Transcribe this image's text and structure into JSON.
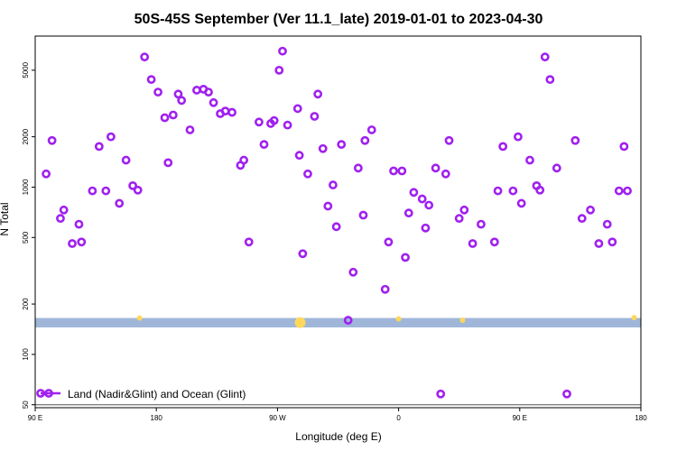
{
  "colors": {
    "series": "#a020f0",
    "band": "#9fb6d9",
    "band_marks": "#ffd75a",
    "axis": "#000000",
    "hline": "#555555"
  },
  "chart_data": {
    "type": "scatter",
    "title": "50S-45S September (Ver 11.1_late)   2019-01-01 to 2023-04-30",
    "xlabel": "Longitude (deg E)",
    "ylabel": "N Total",
    "y_scale": "log",
    "xlim": [
      90,
      450
    ],
    "ylim": [
      48,
      8000
    ],
    "x_ticks": [
      {
        "value": 90,
        "label": "90 E"
      },
      {
        "value": 162,
        "label": "180"
      },
      {
        "value": 234,
        "label": "90 W"
      },
      {
        "value": 306,
        "label": "0"
      },
      {
        "value": 378,
        "label": "90 E"
      },
      {
        "value": 450,
        "label": "180"
      }
    ],
    "y_ticks": [
      {
        "value": 50,
        "label": "50"
      },
      {
        "value": 100,
        "label": "100"
      },
      {
        "value": 200,
        "label": "200"
      },
      {
        "value": 500,
        "label": "500"
      },
      {
        "value": 1000,
        "label": "1000"
      },
      {
        "value": 2000,
        "label": "2000"
      },
      {
        "value": 5000,
        "label": "5000"
      }
    ],
    "reference_line": 50,
    "band": {
      "y_low": 145,
      "y_high": 165
    },
    "band_marks": [
      {
        "x": 152,
        "y": 165
      },
      {
        "x": 247.5,
        "y": 155
      },
      {
        "x": 306,
        "y": 163
      },
      {
        "x": 344,
        "y": 160
      },
      {
        "x": 446,
        "y": 166
      }
    ],
    "legend": {
      "position": "bottom-left",
      "entries": [
        "Land (Nadir&Glint) and Ocean (Glint)"
      ]
    },
    "series": [
      {
        "name": "Land (Nadir&Glint) and Ocean (Glint)",
        "x": [
          96.5,
          100,
          105,
          107,
          112,
          116,
          117.5,
          124,
          128,
          132,
          135,
          140,
          144,
          148,
          151,
          155,
          159,
          163,
          167,
          169,
          172,
          175,
          177,
          182,
          186,
          190,
          193,
          196,
          200,
          203,
          207,
          212,
          214,
          217,
          223,
          226,
          230,
          232,
          235,
          237,
          240,
          246,
          247,
          249,
          252,
          256,
          258,
          261,
          264,
          267,
          269,
          272,
          276,
          279,
          282,
          285,
          286,
          290,
          298,
          300,
          303,
          308,
          310,
          312,
          315,
          320,
          322,
          324,
          328,
          331,
          334,
          336,
          342,
          345,
          350,
          355,
          363,
          365,
          368,
          374,
          377,
          379,
          384,
          388,
          390,
          393,
          396,
          400,
          406,
          411,
          415,
          420,
          425,
          430,
          433,
          437,
          440,
          442
        ],
        "y": [
          1200,
          1900,
          650,
          730,
          460,
          600,
          470,
          950,
          1750,
          950,
          2000,
          800,
          1450,
          1020,
          960,
          6000,
          4400,
          3700,
          2600,
          1400,
          2700,
          3600,
          3300,
          2200,
          3800,
          3850,
          3700,
          3200,
          2750,
          2850,
          2800,
          1350,
          1450,
          470,
          2450,
          1800,
          2400,
          2500,
          5000,
          6500,
          2350,
          2950,
          1550,
          400,
          1200,
          2650,
          3600,
          1700,
          770,
          1030,
          580,
          1800,
          160,
          310,
          1300,
          680,
          1900,
          2200,
          245,
          470,
          1250,
          1250,
          380,
          700,
          930,
          850,
          570,
          780,
          1300,
          58,
          1200,
          1900,
          650,
          730,
          460,
          600,
          470,
          950,
          1750,
          950,
          2000,
          800,
          1450,
          1020,
          960,
          6000,
          4400,
          1300,
          58,
          1900,
          650,
          730,
          460,
          600,
          470,
          950,
          1750,
          950
        ]
      }
    ]
  }
}
